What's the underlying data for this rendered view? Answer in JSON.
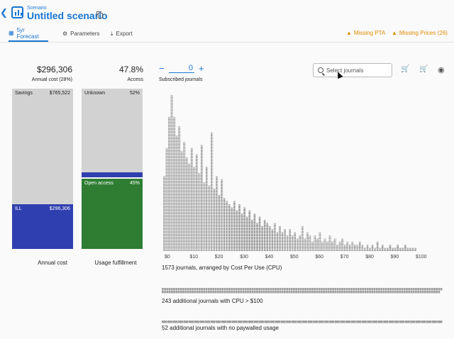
{
  "header": {
    "breadcrumb": "Scenario",
    "title": "Untitled scenario",
    "back_icon": "chevron-left-icon",
    "logo_icon": "bar-chart-icon",
    "copy_icon": "copy-icon"
  },
  "tabs": [
    {
      "label": "5yr Forecast",
      "icon": "chart-icon",
      "active": true
    },
    {
      "label": "Parameters",
      "icon": "gear-icon",
      "active": false
    },
    {
      "label": "Export",
      "icon": "download-icon",
      "active": false
    }
  ],
  "warnings": [
    {
      "label": "Missing PTA",
      "icon": "warning-icon"
    },
    {
      "label": "Missing Prices (26)",
      "icon": "warning-icon"
    }
  ],
  "colors": {
    "accent": "#1976d2",
    "warning": "#e08a00",
    "ill": "#2f3fb0",
    "open_access": "#2e7d32",
    "savings": "#d2d2d2",
    "bars": "#9e9e9e"
  },
  "summary": {
    "annual_cost_value": "$296,306",
    "annual_cost_label": "Annual cost (28%)",
    "access_value": "47.8%",
    "access_label": "Access"
  },
  "cost_column": {
    "savings_label": "Savings",
    "savings_value": "$765,522",
    "ill_label": "ILL",
    "ill_value": "$296,306",
    "ill_fraction": 0.28,
    "caption": "Annual cost"
  },
  "usage_column": {
    "unknown_label": "Unknown",
    "unknown_value": "52%",
    "open_label": "Open access",
    "open_value": "45%",
    "unknown_fraction": 0.52,
    "subscribed_fraction": 0.03,
    "open_fraction": 0.45,
    "caption": "Usage fulfillment"
  },
  "stepper": {
    "minus": "−",
    "plus": "+",
    "value": "0",
    "label": "Subscribed journals"
  },
  "search": {
    "placeholder": "Select journals"
  },
  "toolbar_icons": [
    "cart-add-icon",
    "cart-remove-icon",
    "eye-icon"
  ],
  "chart_data": {
    "type": "bar",
    "x_tick_labels": [
      "$0",
      "$10",
      "$20",
      "$30",
      "$40",
      "$50",
      "$60",
      "$70",
      "$80",
      "$90",
      "$100"
    ],
    "x_ticks": [
      0,
      10,
      20,
      30,
      40,
      50,
      60,
      70,
      80,
      90,
      100
    ],
    "xlim": [
      0,
      100
    ],
    "x": [
      0,
      1,
      2,
      3,
      4,
      5,
      6,
      7,
      8,
      9,
      10,
      11,
      12,
      13,
      14,
      15,
      16,
      17,
      18,
      19,
      20,
      21,
      22,
      23,
      24,
      25,
      26,
      27,
      28,
      29,
      30,
      31,
      32,
      33,
      34,
      35,
      36,
      37,
      38,
      39,
      40,
      41,
      42,
      43,
      44,
      45,
      46,
      47,
      48,
      49,
      50,
      51,
      52,
      53,
      54,
      55,
      56,
      57,
      58,
      59,
      60,
      61,
      62,
      63,
      64,
      65,
      66,
      67,
      68,
      69,
      70,
      71,
      72,
      73,
      74,
      75,
      76,
      77,
      78,
      79,
      80,
      81,
      82,
      83,
      84,
      85,
      86,
      87,
      88,
      89,
      90,
      91,
      92,
      93,
      94,
      95,
      96,
      97,
      98,
      99,
      100
    ],
    "values": [
      24,
      33,
      43,
      50,
      43,
      37,
      40,
      32,
      35,
      30,
      28,
      33,
      27,
      31,
      25,
      34,
      22,
      27,
      21,
      38,
      20,
      24,
      18,
      23,
      17,
      16,
      15,
      14,
      16,
      13,
      15,
      12,
      14,
      11,
      13,
      10,
      12,
      9,
      11,
      8,
      10,
      9,
      8,
      7,
      9,
      6,
      8,
      6,
      7,
      5,
      7,
      5,
      6,
      4,
      5,
      8,
      4,
      6,
      5,
      3,
      5,
      4,
      6,
      3,
      4,
      3,
      5,
      3,
      4,
      2,
      3,
      4,
      2,
      3,
      2,
      3,
      2,
      2,
      3,
      2,
      1,
      2,
      1,
      2,
      1,
      3,
      1,
      2,
      1,
      1,
      2,
      1,
      1,
      2,
      1,
      1,
      2,
      1,
      1,
      1,
      1
    ],
    "caption": "1573 journals, arranged by Cost Per Use (CPU)"
  },
  "extra_rows": [
    {
      "caption": "243 additional journals with CPU > $100",
      "count": 243
    },
    {
      "caption": "52 additional journals with no paywalled usage",
      "count": 52
    }
  ]
}
